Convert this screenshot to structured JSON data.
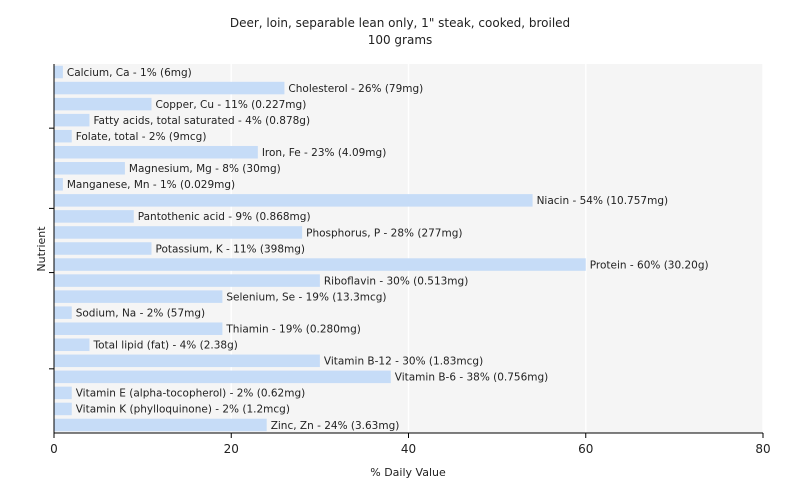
{
  "chart_data": {
    "type": "bar",
    "orientation": "horizontal",
    "title": "Deer, loin, separable lean only, 1\" steak, cooked, broiled",
    "subtitle": "100 grams",
    "xlabel": "% Daily Value",
    "ylabel": "Nutrient",
    "xlim": [
      0,
      80
    ],
    "xticks": [
      0,
      20,
      40,
      60,
      80
    ],
    "grid": true,
    "bar_color": "#c6dcf7",
    "plot_background": "#f5f5f5",
    "categories": [
      "Calcium, Ca",
      "Cholesterol",
      "Copper, Cu",
      "Fatty acids, total saturated",
      "Folate, total",
      "Iron, Fe",
      "Magnesium, Mg",
      "Manganese, Mn",
      "Niacin",
      "Pantothenic acid",
      "Phosphorus, P",
      "Potassium, K",
      "Protein",
      "Riboflavin",
      "Selenium, Se",
      "Sodium, Na",
      "Thiamin",
      "Total lipid (fat)",
      "Vitamin B-12",
      "Vitamin B-6",
      "Vitamin E (alpha-tocopherol)",
      "Vitamin K (phylloquinone)",
      "Zinc, Zn"
    ],
    "values": [
      1,
      26,
      11,
      4,
      2,
      23,
      8,
      1,
      54,
      9,
      28,
      11,
      60,
      30,
      19,
      2,
      19,
      4,
      30,
      38,
      2,
      2,
      24
    ],
    "labels": [
      "Calcium, Ca - 1% (6mg)",
      "Cholesterol - 26% (79mg)",
      "Copper, Cu - 11% (0.227mg)",
      "Fatty acids, total saturated - 4% (0.878g)",
      "Folate, total - 2% (9mcg)",
      "Iron, Fe - 23% (4.09mg)",
      "Magnesium, Mg - 8% (30mg)",
      "Manganese, Mn - 1% (0.029mg)",
      "Niacin - 54% (10.757mg)",
      "Pantothenic acid - 9% (0.868mg)",
      "Phosphorus, P - 28% (277mg)",
      "Potassium, K - 11% (398mg)",
      "Protein - 60% (30.20g)",
      "Riboflavin - 30% (0.513mg)",
      "Selenium, Se - 19% (13.3mcg)",
      "Sodium, Na - 2% (57mg)",
      "Thiamin - 19% (0.280mg)",
      "Total lipid (fat) - 4% (2.38g)",
      "Vitamin B-12 - 30% (1.83mcg)",
      "Vitamin B-6 - 38% (0.756mg)",
      "Vitamin E (alpha-tocopherol) - 2% (0.62mg)",
      "Vitamin K (phylloquinone) - 2% (1.2mcg)",
      "Zinc, Zn - 24% (3.63mg)"
    ]
  }
}
